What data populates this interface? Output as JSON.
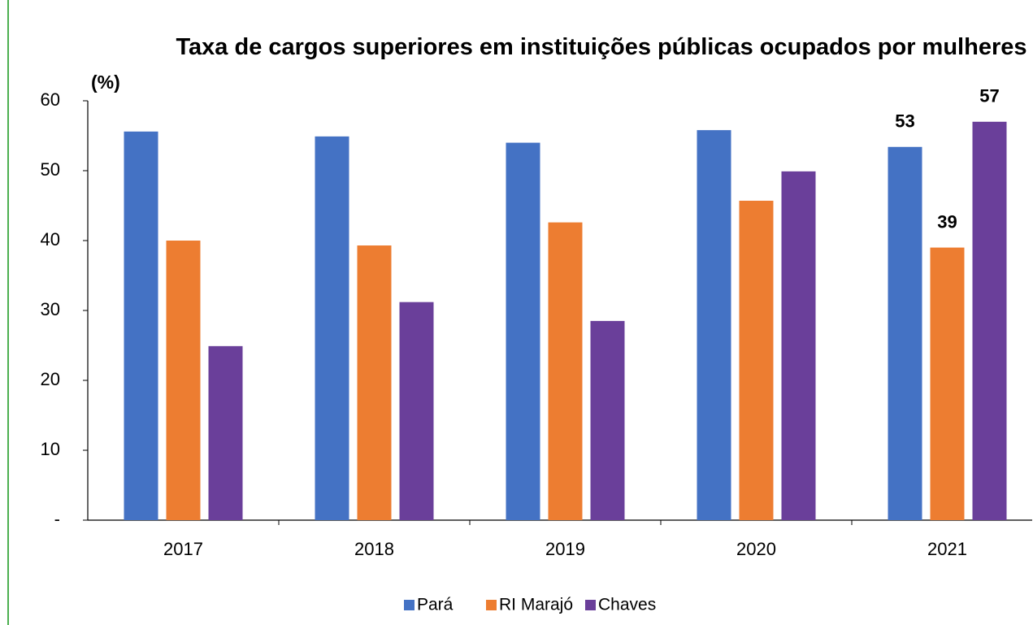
{
  "chart_data": {
    "type": "bar",
    "title": "Taxa de cargos superiores em instituições públicas ocupados por mulheres",
    "y_label": "(%)",
    "categories": [
      "2017",
      "2018",
      "2019",
      "2020",
      "2021"
    ],
    "series": [
      {
        "name": "Pará",
        "color": "#4472c4",
        "values": [
          55.6,
          54.9,
          54.0,
          55.8,
          53.4
        ],
        "value_labels": [
          null,
          null,
          null,
          null,
          "53"
        ]
      },
      {
        "name": "RI Marajó",
        "color": "#ed7d31",
        "values": [
          40.0,
          39.3,
          42.6,
          45.7,
          39.0
        ],
        "value_labels": [
          null,
          null,
          null,
          null,
          "39"
        ]
      },
      {
        "name": "Chaves",
        "color": "#6a3f9a",
        "values": [
          24.9,
          31.2,
          28.5,
          49.9,
          57.0
        ],
        "value_labels": [
          null,
          null,
          null,
          null,
          "57"
        ]
      }
    ],
    "ylim": [
      0,
      60
    ],
    "yticks": [
      {
        "value": 0,
        "label": "-"
      },
      10,
      20,
      30,
      40,
      50,
      60
    ],
    "grid": false,
    "legend": "bottom"
  }
}
